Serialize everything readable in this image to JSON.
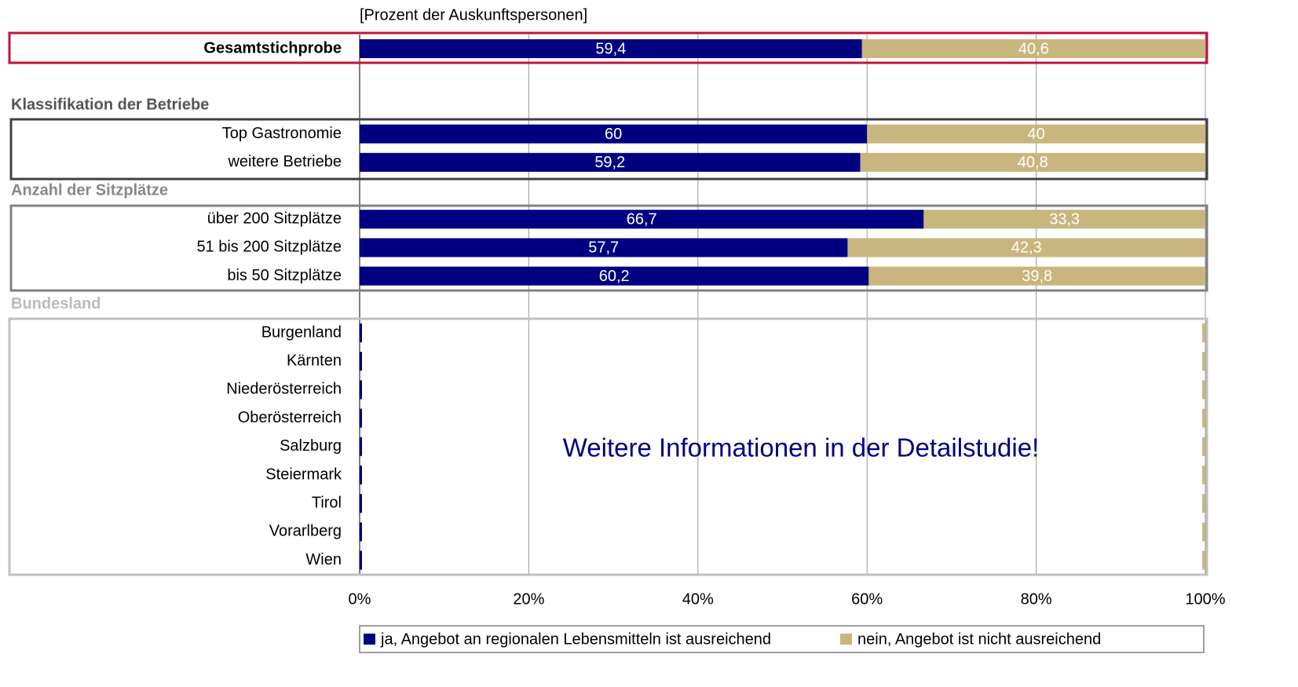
{
  "chart_data": {
    "type": "stacked_barh",
    "axis_title": "[Prozent der Auskunftspersonen]",
    "annotation": "Weitere Informationen in der Detailstudie!",
    "categories": [
      "Gesamtstichprobe",
      null,
      null,
      "Top Gastronomie",
      "weitere Betriebe",
      null,
      "über 200 Sitzplätze",
      "51 bis 200 Sitzplätze",
      "bis 50 Sitzplätze",
      null,
      "Burgenland",
      "Kärnten",
      "Niederösterreich",
      "Oberösterreich",
      "Salzburg",
      "Steiermark",
      "Tirol",
      "Vorarlberg",
      "Wien"
    ],
    "section_titles": [
      null,
      null,
      "Klassifikation der Betriebe",
      null,
      null,
      "Anzahl der Sitzplätze",
      null,
      null,
      null,
      "Bundesland",
      null,
      null,
      null,
      null,
      null,
      null,
      null,
      null,
      null
    ],
    "series": [
      {
        "name": "ja, Angebot an regionalen Lebensmitteln ist ausreichend",
        "color": "#000080",
        "values": [
          59.4,
          null,
          null,
          60,
          59.2,
          null,
          66.7,
          57.7,
          60.2,
          null,
          null,
          null,
          null,
          null,
          null,
          null,
          null,
          null,
          null
        ],
        "value_labels": [
          "59,4",
          null,
          null,
          "60",
          "59,2",
          null,
          "66,7",
          "57,7",
          "60,2",
          null,
          null,
          null,
          null,
          null,
          null,
          null,
          null,
          null,
          null
        ]
      },
      {
        "name": "nein, Angebot ist nicht ausreichend",
        "color": "#c8b67e",
        "values": [
          40.6,
          null,
          null,
          40,
          40.8,
          null,
          33.3,
          42.3,
          39.8,
          null,
          null,
          null,
          null,
          null,
          null,
          null,
          null,
          null,
          null
        ],
        "value_labels": [
          "40,6",
          null,
          null,
          "40",
          "40,8",
          null,
          "33,3",
          "42,3",
          "39,8",
          null,
          null,
          null,
          null,
          null,
          null,
          null,
          null,
          null,
          null
        ]
      }
    ],
    "xlim": [
      0,
      100
    ],
    "xticks": [
      {
        "value": 0,
        "label": "0%"
      },
      {
        "value": 20,
        "label": "20%"
      },
      {
        "value": 40,
        "label": "40%"
      },
      {
        "value": 60,
        "label": "60%"
      },
      {
        "value": 80,
        "label": "80%"
      },
      {
        "value": 100,
        "label": "100%"
      }
    ],
    "grid": true
  }
}
